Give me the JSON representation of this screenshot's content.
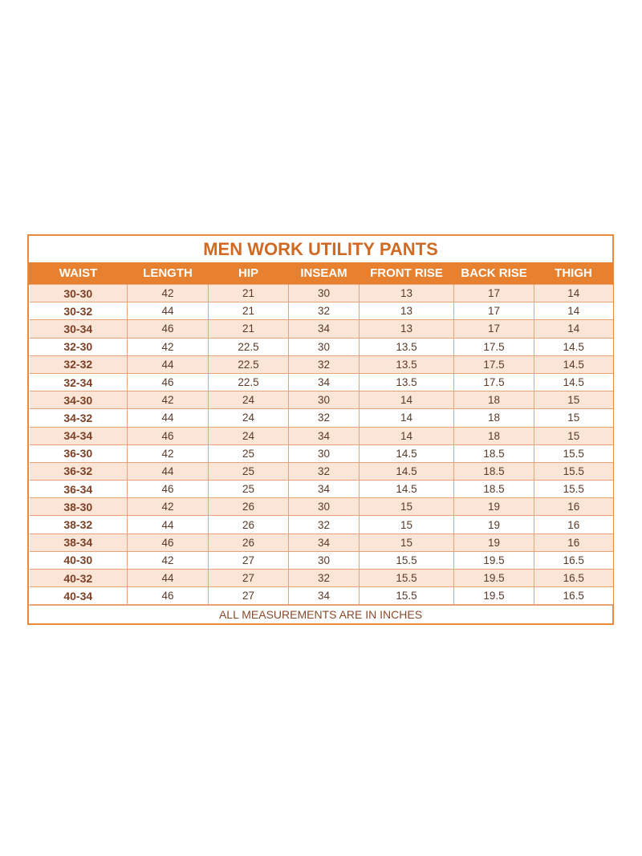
{
  "title": "MEN WORK UTILITY PANTS",
  "headers": [
    "WAIST",
    "LENGTH",
    "HIP",
    "INSEAM",
    "FRONT RISE",
    "BACK RISE",
    "THIGH"
  ],
  "rows": [
    [
      "30-30",
      "42",
      "21",
      "30",
      "13",
      "17",
      "14"
    ],
    [
      "30-32",
      "44",
      "21",
      "32",
      "13",
      "17",
      "14"
    ],
    [
      "30-34",
      "46",
      "21",
      "34",
      "13",
      "17",
      "14"
    ],
    [
      "32-30",
      "42",
      "22.5",
      "30",
      "13.5",
      "17.5",
      "14.5"
    ],
    [
      "32-32",
      "44",
      "22.5",
      "32",
      "13.5",
      "17.5",
      "14.5"
    ],
    [
      "32-34",
      "46",
      "22.5",
      "34",
      "13.5",
      "17.5",
      "14.5"
    ],
    [
      "34-30",
      "42",
      "24",
      "30",
      "14",
      "18",
      "15"
    ],
    [
      "34-32",
      "44",
      "24",
      "32",
      "14",
      "18",
      "15"
    ],
    [
      "34-34",
      "46",
      "24",
      "34",
      "14",
      "18",
      "15"
    ],
    [
      "36-30",
      "42",
      "25",
      "30",
      "14.5",
      "18.5",
      "15.5"
    ],
    [
      "36-32",
      "44",
      "25",
      "32",
      "14.5",
      "18.5",
      "15.5"
    ],
    [
      "36-34",
      "46",
      "25",
      "34",
      "14.5",
      "18.5",
      "15.5"
    ],
    [
      "38-30",
      "42",
      "26",
      "30",
      "15",
      "19",
      "16"
    ],
    [
      "38-32",
      "44",
      "26",
      "32",
      "15",
      "19",
      "16"
    ],
    [
      "38-34",
      "46",
      "26",
      "34",
      "15",
      "19",
      "16"
    ],
    [
      "40-30",
      "42",
      "27",
      "30",
      "15.5",
      "19.5",
      "16.5"
    ],
    [
      "40-32",
      "44",
      "27",
      "32",
      "15.5",
      "19.5",
      "16.5"
    ],
    [
      "40-34",
      "46",
      "27",
      "34",
      "15.5",
      "19.5",
      "16.5"
    ]
  ],
  "footer": "ALL MEASUREMENTS ARE IN INCHES",
  "colors": {
    "accent": "#e8812f",
    "title": "#d06a22",
    "row_shade": "#fbe5d6",
    "text": "#5a3a28"
  }
}
